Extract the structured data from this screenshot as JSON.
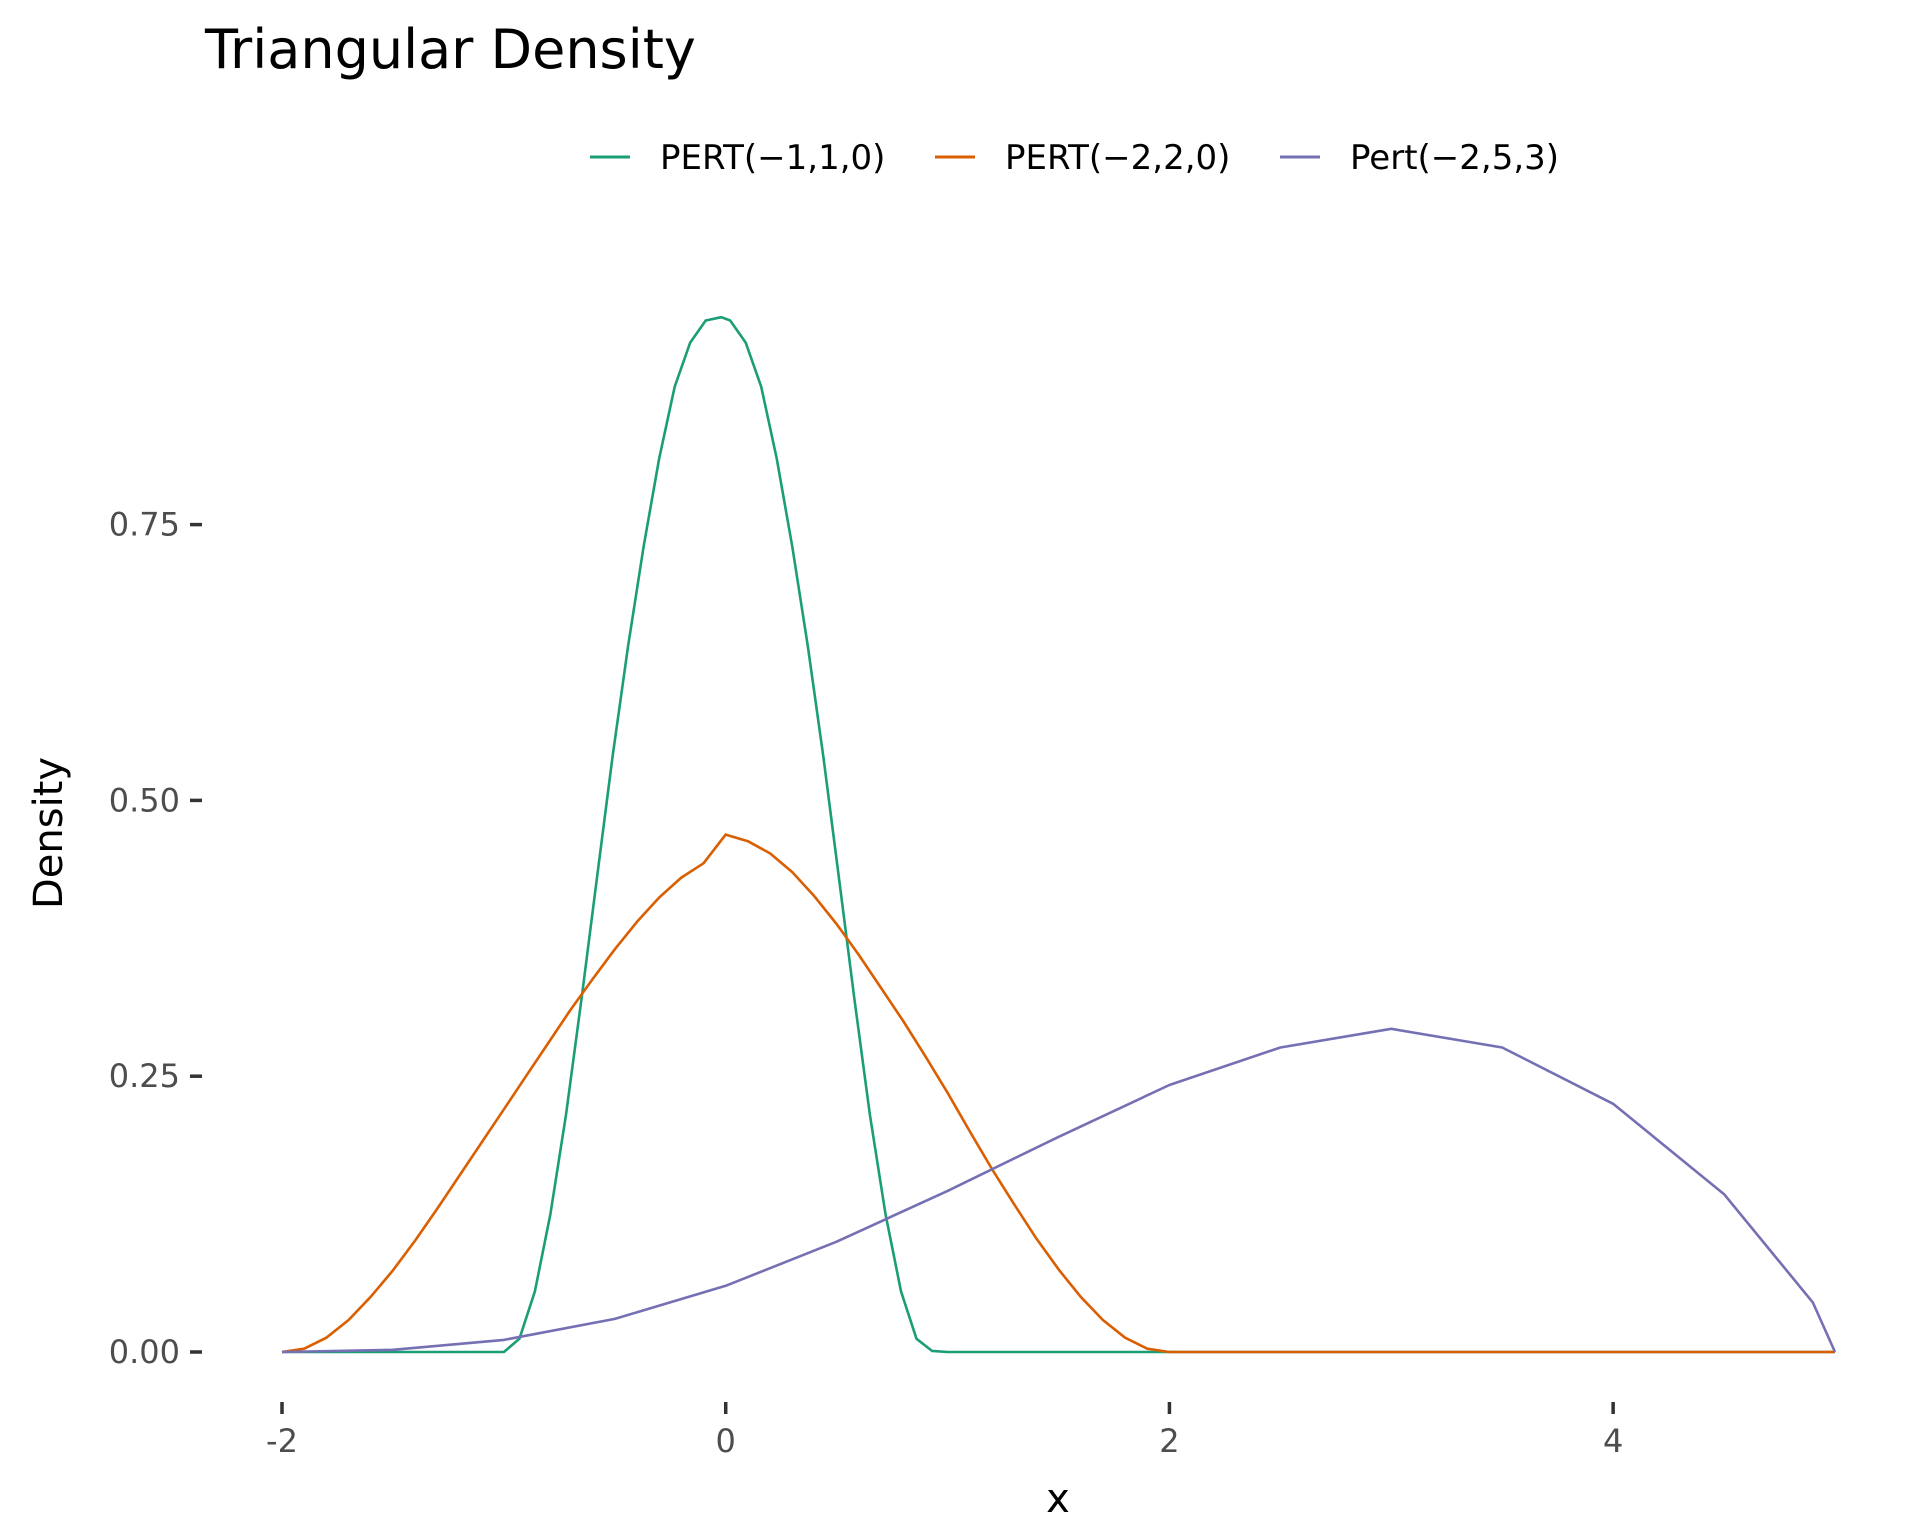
{
  "chart_data": {
    "type": "line",
    "title": "Triangular Density",
    "xlabel": "x",
    "ylabel": "Density",
    "xlim": [
      -2,
      5
    ],
    "ylim": [
      0,
      0.94
    ],
    "x_ticks": [
      "-2",
      "0",
      "2",
      "4"
    ],
    "x_tick_values": [
      -2,
      0,
      2,
      4
    ],
    "y_ticks": [
      "0.00",
      "0.25",
      "0.50",
      "0.75"
    ],
    "y_tick_values": [
      0,
      0.25,
      0.5,
      0.75
    ],
    "grid": false,
    "legend_position": "top",
    "series": [
      {
        "name": "PERT(−1,1,0)",
        "color": "#1b9e77",
        "x": [
          -2,
          -1.0,
          -0.93,
          -0.86,
          -0.79,
          -0.72,
          -0.65,
          -0.58,
          -0.51,
          -0.44,
          -0.37,
          -0.3,
          -0.23,
          -0.16,
          -0.09,
          -0.02,
          0.02,
          0.09,
          0.16,
          0.23,
          0.3,
          0.37,
          0.44,
          0.51,
          0.58,
          0.65,
          0.72,
          0.79,
          0.86,
          0.93,
          1.0,
          5
        ],
        "y": [
          0,
          0,
          0.012,
          0.055,
          0.125,
          0.215,
          0.32,
          0.43,
          0.54,
          0.64,
          0.73,
          0.81,
          0.875,
          0.915,
          0.935,
          0.938,
          0.935,
          0.915,
          0.875,
          0.81,
          0.73,
          0.64,
          0.54,
          0.43,
          0.32,
          0.215,
          0.125,
          0.055,
          0.012,
          0.001,
          0,
          0
        ]
      },
      {
        "name": "PERT(−2,2,0)",
        "color": "#d95f02",
        "x": [
          -2,
          -1.9,
          -1.8,
          -1.7,
          -1.6,
          -1.5,
          -1.4,
          -1.3,
          -1.2,
          -1.1,
          -1.0,
          -0.9,
          -0.8,
          -0.7,
          -0.6,
          -0.5,
          -0.4,
          -0.3,
          -0.2,
          -0.1,
          0,
          0.1,
          0.2,
          0.3,
          0.4,
          0.5,
          0.6,
          0.7,
          0.8,
          0.9,
          1.0,
          1.1,
          1.2,
          1.3,
          1.4,
          1.5,
          1.6,
          1.7,
          1.8,
          1.9,
          2.0,
          5
        ],
        "y": [
          0,
          0.003,
          0.013,
          0.029,
          0.05,
          0.074,
          0.101,
          0.13,
          0.16,
          0.19,
          0.22,
          0.25,
          0.28,
          0.31,
          0.338,
          0.365,
          0.39,
          0.412,
          0.43,
          0.443,
          0.469,
          0.463,
          0.452,
          0.435,
          0.413,
          0.388,
          0.36,
          0.33,
          0.3,
          0.268,
          0.235,
          0.2,
          0.166,
          0.134,
          0.103,
          0.075,
          0.05,
          0.029,
          0.013,
          0.003,
          0,
          0
        ]
      },
      {
        "name": "Pert(−2,5,3)",
        "color": "#7570b3",
        "x": [
          -2,
          -1.5,
          -1.0,
          -0.5,
          0,
          0.5,
          1.0,
          1.5,
          2.0,
          2.5,
          3.0,
          3.5,
          4.0,
          4.5,
          4.9,
          5
        ],
        "y": [
          0,
          0.002,
          0.011,
          0.03,
          0.06,
          0.1,
          0.146,
          0.195,
          0.242,
          0.276,
          0.293,
          0.276,
          0.225,
          0.143,
          0.045,
          0
        ]
      }
    ]
  }
}
